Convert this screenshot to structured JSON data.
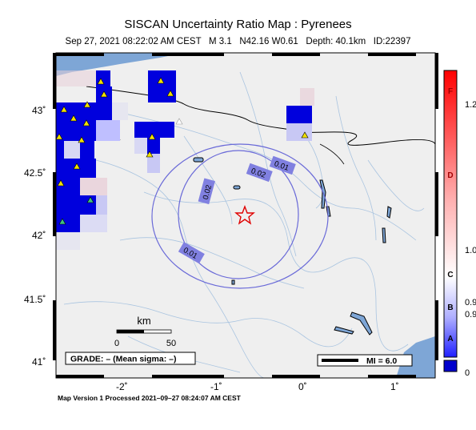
{
  "header": {
    "title": "SISCAN Uncertainty Ratio Map : Pyrenees",
    "subtitle": "Sep 27, 2021 08:22:02 AM CEST   M 3.1   N42.16 W0.61   Depth: 40.1km   ID:22397"
  },
  "map": {
    "lat_labels": [
      "43˚",
      "42.5˚",
      "42˚",
      "41.5˚",
      "41˚"
    ],
    "lon_labels": [
      "-2˚",
      "-1˚",
      "0˚",
      "1˚"
    ],
    "contour_labels": [
      "0.01",
      "0.02",
      "0.02",
      "0.01"
    ],
    "epicenter_marker": "red-star",
    "station_marker_colors": {
      "primary": "#f0e000",
      "alternate": "#40c080"
    }
  },
  "scale_bar": {
    "unit": "km",
    "tick_labels": [
      "0",
      "50"
    ]
  },
  "grade_box": {
    "text": "GRADE: – (Mean sigma: –)"
  },
  "mi_legend": {
    "text": "MI = 6.0"
  },
  "colorbar": {
    "grade_letters": [
      "F",
      "D",
      "C",
      "B",
      "A"
    ],
    "value_labels": [
      "1.2",
      "1.0",
      "0.9",
      "0.9",
      "0"
    ],
    "colors": {
      "top": "#ff0000",
      "middle": "#ffffff",
      "bottom": "#0000cc"
    }
  },
  "footer": {
    "text": "Map Version 1 Processed 2021–09–27 08:24:07 AM CEST"
  }
}
